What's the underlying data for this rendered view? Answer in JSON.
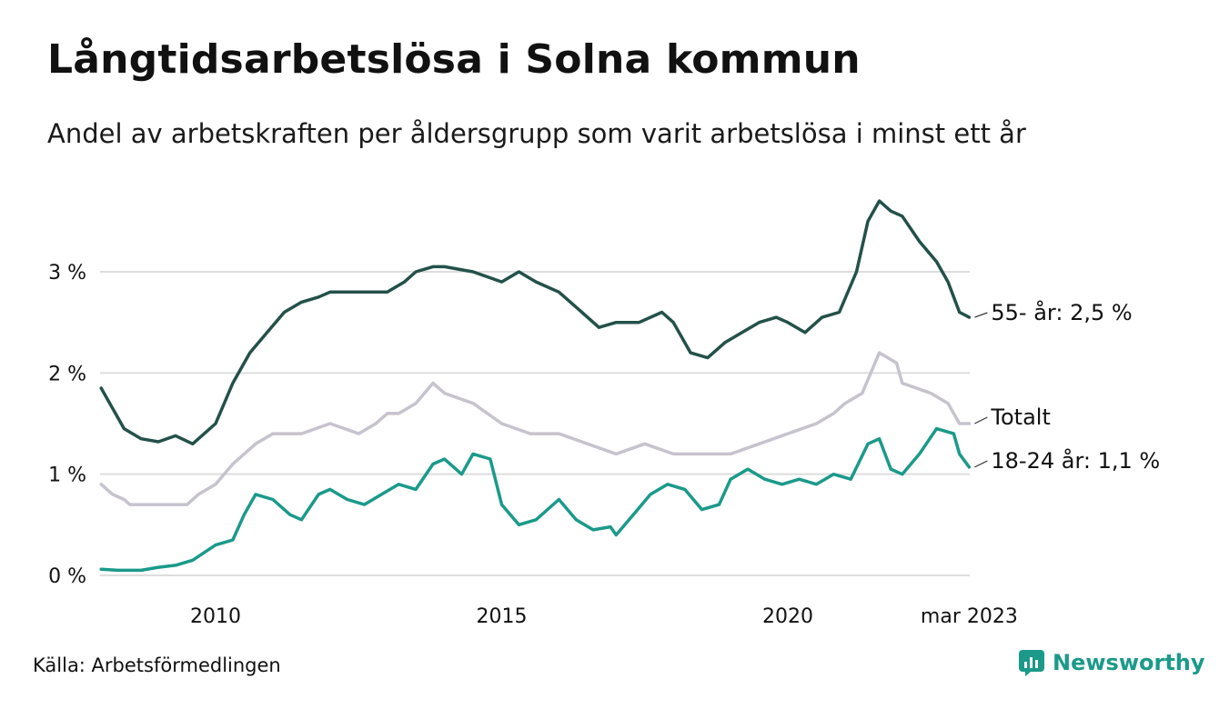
{
  "title": "Långtidsarbetslösa i Solna kommun",
  "subtitle": "Andel av arbetskraften per åldersgrupp som varit arbetslösa i minst ett år",
  "source": "Källa: Arbetsförmedlingen",
  "brand": "Newsworthy",
  "colors": {
    "series_55": "#23514a",
    "series_total": "#c7c3ce",
    "series_1824": "#1b9a8a",
    "grid": "#dddddd",
    "brand": "#1b9a8a"
  },
  "chart_data": {
    "type": "line",
    "xlabel": "",
    "ylabel": "",
    "ylim": [
      0,
      3.8
    ],
    "xlim": [
      2008.0,
      2023.17
    ],
    "grid": "horizontal",
    "y_ticks": [
      {
        "value": 0,
        "label": "0 %"
      },
      {
        "value": 1,
        "label": "1 %"
      },
      {
        "value": 2,
        "label": "2 %"
      },
      {
        "value": 3,
        "label": "3 %"
      }
    ],
    "x_ticks": [
      {
        "value": 2010,
        "label": "2010"
      },
      {
        "value": 2015,
        "label": "2015"
      },
      {
        "value": 2020,
        "label": "2020"
      },
      {
        "value": 2023.17,
        "label": "mar 2023"
      }
    ],
    "series": [
      {
        "name": "Totalt",
        "label": "Totalt",
        "color_key": "series_total",
        "x": [
          2008.0,
          2008.2,
          2008.4,
          2008.5,
          2009.0,
          2009.5,
          2009.7,
          2010.0,
          2010.3,
          2010.5,
          2010.7,
          2011.0,
          2011.2,
          2011.5,
          2012.0,
          2012.5,
          2012.8,
          2013.0,
          2013.2,
          2013.5,
          2013.8,
          2014.0,
          2014.5,
          2015.0,
          2015.5,
          2016.0,
          2016.5,
          2017.0,
          2017.5,
          2018.0,
          2018.5,
          2019.0,
          2019.5,
          2020.0,
          2020.5,
          2020.8,
          2021.0,
          2021.3,
          2021.6,
          2021.9,
          2022.0,
          2022.5,
          2022.8,
          2023.0,
          2023.17
        ],
        "y": [
          0.9,
          0.8,
          0.75,
          0.7,
          0.7,
          0.7,
          0.8,
          0.9,
          1.1,
          1.2,
          1.3,
          1.4,
          1.4,
          1.4,
          1.5,
          1.4,
          1.5,
          1.6,
          1.6,
          1.7,
          1.9,
          1.8,
          1.7,
          1.5,
          1.4,
          1.4,
          1.3,
          1.2,
          1.3,
          1.2,
          1.2,
          1.2,
          1.3,
          1.4,
          1.5,
          1.6,
          1.7,
          1.8,
          2.2,
          2.1,
          1.9,
          1.8,
          1.7,
          1.5,
          1.5
        ]
      },
      {
        "name": "55- år",
        "label": "55- år: 2,5 %",
        "color_key": "series_55",
        "x": [
          2008.0,
          2008.2,
          2008.4,
          2008.7,
          2009.0,
          2009.3,
          2009.6,
          2010.0,
          2010.3,
          2010.6,
          2010.9,
          2011.2,
          2011.5,
          2011.8,
          2012.0,
          2012.5,
          2013.0,
          2013.3,
          2013.5,
          2013.8,
          2014.0,
          2014.5,
          2015.0,
          2015.3,
          2015.6,
          2016.0,
          2016.4,
          2016.7,
          2017.0,
          2017.4,
          2017.8,
          2018.0,
          2018.3,
          2018.6,
          2018.9,
          2019.2,
          2019.5,
          2019.8,
          2020.0,
          2020.3,
          2020.6,
          2020.9,
          2021.2,
          2021.4,
          2021.6,
          2021.8,
          2022.0,
          2022.3,
          2022.6,
          2022.8,
          2023.0,
          2023.17
        ],
        "y": [
          1.85,
          1.65,
          1.45,
          1.35,
          1.32,
          1.38,
          1.3,
          1.5,
          1.9,
          2.2,
          2.4,
          2.6,
          2.7,
          2.75,
          2.8,
          2.8,
          2.8,
          2.9,
          3.0,
          3.05,
          3.05,
          3.0,
          2.9,
          3.0,
          2.9,
          2.8,
          2.6,
          2.45,
          2.5,
          2.5,
          2.6,
          2.5,
          2.2,
          2.15,
          2.3,
          2.4,
          2.5,
          2.55,
          2.5,
          2.4,
          2.55,
          2.6,
          3.0,
          3.5,
          3.7,
          3.6,
          3.55,
          3.3,
          3.1,
          2.9,
          2.6,
          2.55
        ]
      },
      {
        "name": "18-24 år",
        "label": "18-24 år: 1,1 %",
        "color_key": "series_1824",
        "x": [
          2008.0,
          2008.3,
          2008.7,
          2009.0,
          2009.3,
          2009.6,
          2010.0,
          2010.3,
          2010.5,
          2010.7,
          2011.0,
          2011.3,
          2011.5,
          2011.8,
          2012.0,
          2012.3,
          2012.6,
          2012.9,
          2013.2,
          2013.5,
          2013.8,
          2014.0,
          2014.3,
          2014.5,
          2014.8,
          2015.0,
          2015.3,
          2015.6,
          2016.0,
          2016.3,
          2016.6,
          2016.9,
          2017.0,
          2017.3,
          2017.6,
          2017.9,
          2018.2,
          2018.5,
          2018.8,
          2019.0,
          2019.3,
          2019.6,
          2019.9,
          2020.2,
          2020.5,
          2020.8,
          2021.1,
          2021.4,
          2021.6,
          2021.8,
          2022.0,
          2022.3,
          2022.6,
          2022.9,
          2023.0,
          2023.17
        ],
        "y": [
          0.06,
          0.05,
          0.05,
          0.08,
          0.1,
          0.15,
          0.3,
          0.35,
          0.6,
          0.8,
          0.75,
          0.6,
          0.55,
          0.8,
          0.85,
          0.75,
          0.7,
          0.8,
          0.9,
          0.85,
          1.1,
          1.15,
          1.0,
          1.2,
          1.15,
          0.7,
          0.5,
          0.55,
          0.75,
          0.55,
          0.45,
          0.48,
          0.4,
          0.6,
          0.8,
          0.9,
          0.85,
          0.65,
          0.7,
          0.95,
          1.05,
          0.95,
          0.9,
          0.95,
          0.9,
          1.0,
          0.95,
          1.3,
          1.35,
          1.05,
          1.0,
          1.2,
          1.45,
          1.4,
          1.2,
          1.07
        ]
      }
    ]
  }
}
